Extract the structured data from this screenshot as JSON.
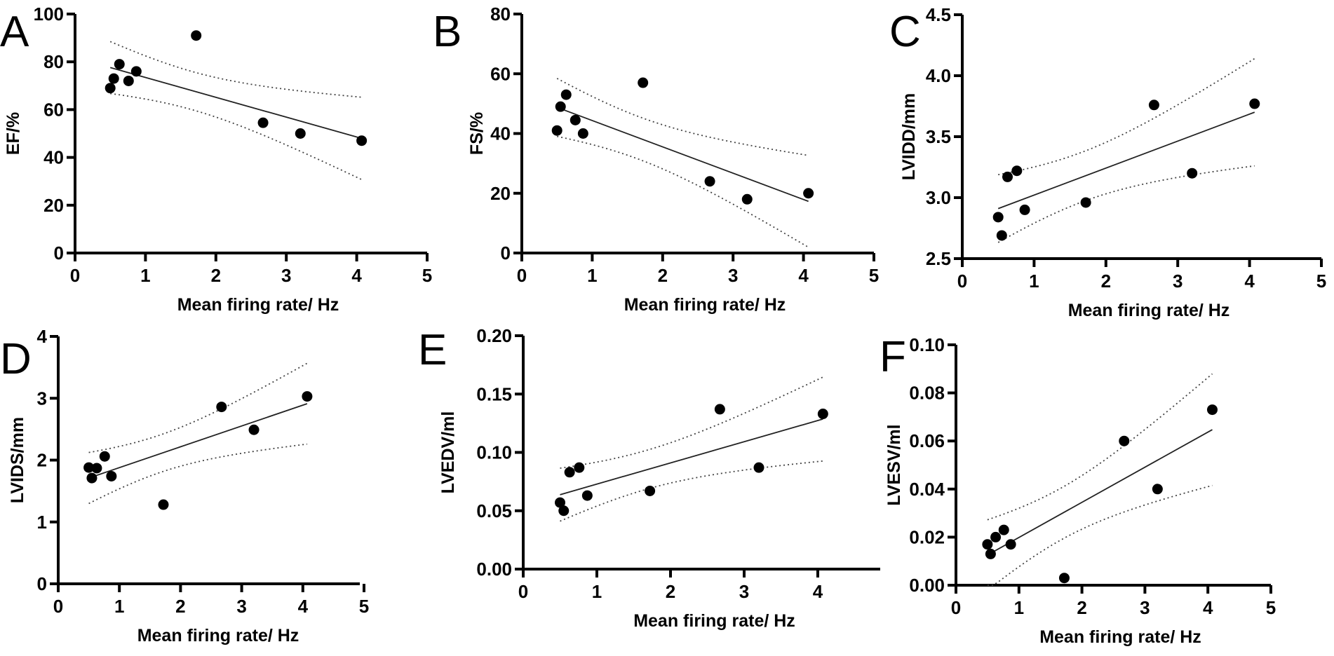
{
  "chart_data": [
    {
      "type": "scatter",
      "panel": "A",
      "title": "",
      "xlabel": "Mean firing rate/ Hz",
      "ylabel": "EF/%",
      "xlim": [
        0,
        5
      ],
      "ylim": [
        0,
        100
      ],
      "xticks": [
        "0",
        "1",
        "2",
        "3",
        "4",
        "5"
      ],
      "yticks": [
        "0",
        "20",
        "40",
        "60",
        "80",
        "100"
      ],
      "x": [
        0.5,
        0.55,
        0.63,
        0.76,
        0.87,
        1.72,
        2.67,
        3.2,
        4.07
      ],
      "y": [
        69,
        73,
        79,
        72,
        76,
        91,
        54.5,
        50,
        47
      ],
      "fit": "linear regression with 95% confidence bands"
    },
    {
      "type": "scatter",
      "panel": "B",
      "title": "",
      "xlabel": "Mean firing rate/ Hz",
      "ylabel": "FS/%",
      "xlim": [
        0,
        5
      ],
      "ylim": [
        0,
        80
      ],
      "xticks": [
        "0",
        "1",
        "2",
        "3",
        "4",
        "5"
      ],
      "yticks": [
        "0",
        "20",
        "40",
        "60",
        "80"
      ],
      "x": [
        0.5,
        0.55,
        0.63,
        0.76,
        0.87,
        1.72,
        2.67,
        3.2,
        4.07
      ],
      "y": [
        41,
        49,
        53,
        44.5,
        40,
        57,
        24,
        18,
        20
      ],
      "fit": "linear regression with 95% confidence bands"
    },
    {
      "type": "scatter",
      "panel": "C",
      "title": "",
      "xlabel": "Mean firing rate/ Hz",
      "ylabel": "LVIDD/mm",
      "xlim": [
        0,
        5
      ],
      "ylim": [
        2.5,
        4.5
      ],
      "xticks": [
        "0",
        "1",
        "2",
        "3",
        "4",
        "5"
      ],
      "yticks": [
        "2.5",
        "3.0",
        "3.5",
        "4.0",
        "4.5"
      ],
      "x": [
        0.5,
        0.55,
        0.63,
        0.76,
        0.87,
        1.72,
        2.67,
        3.2,
        4.07
      ],
      "y": [
        2.84,
        2.69,
        3.17,
        3.22,
        2.9,
        2.96,
        3.76,
        3.2,
        3.77
      ],
      "fit": "linear regression with 95% confidence bands"
    },
    {
      "type": "scatter",
      "panel": "D",
      "title": "",
      "xlabel": "Mean firing rate/ Hz",
      "ylabel": "LVIDS/mm",
      "xlim": [
        0,
        5
      ],
      "ylim": [
        0,
        4
      ],
      "xticks": [
        "0",
        "1",
        "2",
        "3",
        "4",
        "5"
      ],
      "yticks": [
        "0",
        "1",
        "2",
        "3",
        "4"
      ],
      "x": [
        0.5,
        0.55,
        0.63,
        0.76,
        0.87,
        1.72,
        2.67,
        3.2,
        4.07
      ],
      "y": [
        1.88,
        1.71,
        1.87,
        2.06,
        1.74,
        1.28,
        2.86,
        2.49,
        3.03
      ],
      "fit": "linear regression with 95% confidence bands"
    },
    {
      "type": "scatter",
      "panel": "E",
      "title": "",
      "xlabel": "Mean firing rate/ Hz",
      "ylabel": "LVEDV/ml",
      "xlim": [
        0,
        4.8
      ],
      "ylim": [
        0,
        0.2
      ],
      "xticks": [
        "0",
        "1",
        "2",
        "3",
        "4"
      ],
      "yticks": [
        "0.00",
        "0.05",
        "0.10",
        "0.15",
        "0.20"
      ],
      "x": [
        0.5,
        0.55,
        0.63,
        0.76,
        0.87,
        1.72,
        2.67,
        3.2,
        4.07
      ],
      "y": [
        0.057,
        0.05,
        0.083,
        0.087,
        0.063,
        0.067,
        0.137,
        0.087,
        0.133
      ],
      "fit": "linear regression with 95% confidence bands"
    },
    {
      "type": "scatter",
      "panel": "F",
      "title": "",
      "xlabel": "Mean firing rate/ Hz",
      "ylabel": "LVESV/ml",
      "xlim": [
        0,
        5
      ],
      "ylim": [
        0,
        0.1
      ],
      "xticks": [
        "0",
        "1",
        "2",
        "3",
        "4",
        "5"
      ],
      "yticks": [
        "0.00",
        "0.02",
        "0.04",
        "0.06",
        "0.08",
        "0.10"
      ],
      "x": [
        0.5,
        0.55,
        0.63,
        0.76,
        0.87,
        1.72,
        2.67,
        3.2,
        4.07
      ],
      "y": [
        0.017,
        0.013,
        0.02,
        0.023,
        0.017,
        0.003,
        0.06,
        0.04,
        0.073
      ],
      "fit": "linear regression with 95% confidence bands"
    }
  ]
}
